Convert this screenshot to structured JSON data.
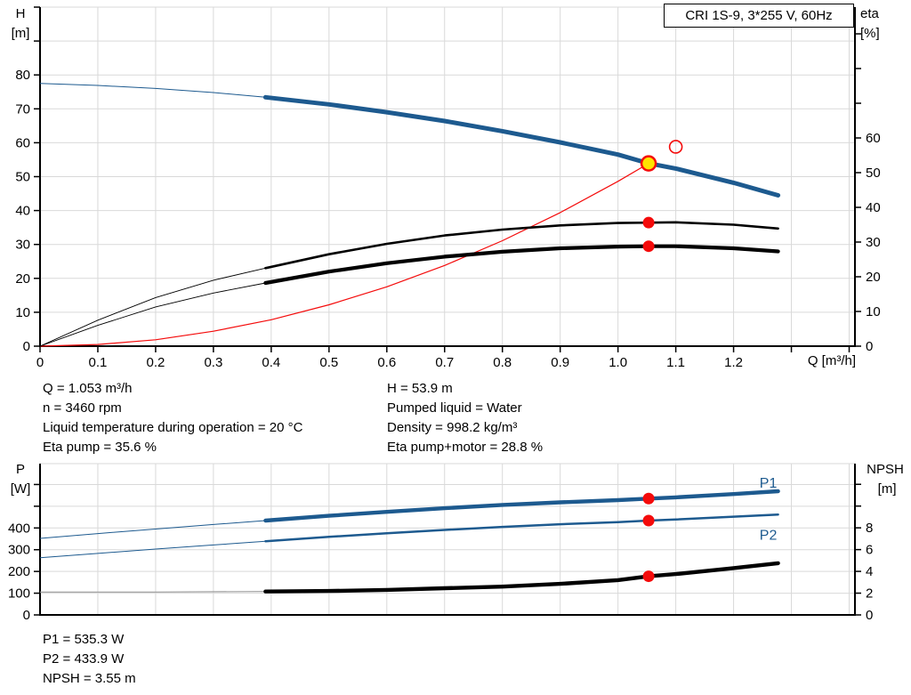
{
  "title_box": "CRI 1S-9, 3*255 V, 60Hz",
  "axis_labels": {
    "h": "H\n[m]",
    "eta": "eta\n[%]",
    "q": "Q [m³/h]",
    "p": "P\n[W]",
    "npsh": "NPSH\n [m]"
  },
  "colors": {
    "curve_blue": "#1d5a8f",
    "red": "#f40b0b",
    "yellow": "#ffe400",
    "grid": "#d9d9d9",
    "npsh_thin_gray": "#9a9a9a",
    "black": "#000000"
  },
  "info_top": {
    "left": [
      "Q = 1.053 m³/h",
      "n = 3460 rpm",
      "Liquid temperature during operation = 20 °C",
      "Eta pump = 35.6 %"
    ],
    "right": [
      "H = 53.9 m",
      "Pumped liquid = Water",
      "Density = 998.2 kg/m³",
      "Eta pump+motor = 28.8 %"
    ]
  },
  "info_bottom": [
    "P1 = 535.3 W",
    "P2 = 433.9 W",
    "NPSH = 3.55 m"
  ],
  "chart_data": [
    {
      "id": "hq",
      "type": "line",
      "title": "CRI 1S-9, 3*255 V, 60Hz",
      "xlabel": "Q [m³/h]",
      "x_range": [
        0,
        1.41
      ],
      "x_tick_step": 0.1,
      "x_grid_max": 1.4,
      "x_tick_labels": [
        "0",
        "0.1",
        "0.2",
        "0.3",
        "0.4",
        "0.5",
        "0.6",
        "0.7",
        "0.8",
        "0.9",
        "1.0",
        "1.1",
        "1.2"
      ],
      "left_axis": {
        "label": "H [m]",
        "range": [
          0,
          100
        ],
        "tick_step": 10,
        "labeled_max": 80
      },
      "right_axis": {
        "label": "eta [%]",
        "range": [
          0,
          97.7
        ],
        "tick_step": 10,
        "labeled_max": 60
      },
      "series": [
        {
          "name": "system-curve",
          "axis": "left",
          "color": "red",
          "width": 1.2,
          "points": [
            [
              0,
              0
            ],
            [
              0.1,
              0.5
            ],
            [
              0.2,
              1.9
            ],
            [
              0.3,
              4.4
            ],
            [
              0.4,
              7.8
            ],
            [
              0.5,
              12.2
            ],
            [
              0.6,
              17.5
            ],
            [
              0.7,
              23.8
            ],
            [
              0.8,
              31.1
            ],
            [
              0.9,
              39.4
            ],
            [
              1.0,
              48.6
            ],
            [
              1.053,
              53.9
            ]
          ]
        },
        {
          "name": "head",
          "axis": "left",
          "color": "curve_blue",
          "width": 5,
          "thick_from": 0.39,
          "thin_width": 1,
          "points": [
            [
              0,
              77.5
            ],
            [
              0.1,
              76.9
            ],
            [
              0.2,
              76.0
            ],
            [
              0.3,
              74.8
            ],
            [
              0.39,
              73.4
            ],
            [
              0.5,
              71.3
            ],
            [
              0.6,
              69.0
            ],
            [
              0.7,
              66.4
            ],
            [
              0.8,
              63.4
            ],
            [
              0.9,
              60.1
            ],
            [
              1.0,
              56.5
            ],
            [
              1.053,
              53.9
            ],
            [
              1.1,
              52.4
            ],
            [
              1.2,
              48.2
            ],
            [
              1.277,
              44.5
            ]
          ]
        },
        {
          "name": "eta-pump",
          "axis": "right",
          "color": "black",
          "width": 2.6,
          "thick_from": 0.39,
          "thin_width": 0.9,
          "points": [
            [
              0,
              0
            ],
            [
              0.1,
              7.5
            ],
            [
              0.2,
              14
            ],
            [
              0.3,
              19
            ],
            [
              0.39,
              22.5
            ],
            [
              0.5,
              26.5
            ],
            [
              0.6,
              29.5
            ],
            [
              0.7,
              31.9
            ],
            [
              0.8,
              33.6
            ],
            [
              0.9,
              34.8
            ],
            [
              1.0,
              35.5
            ],
            [
              1.053,
              35.6
            ],
            [
              1.1,
              35.7
            ],
            [
              1.2,
              35.0
            ],
            [
              1.277,
              33.9
            ]
          ]
        },
        {
          "name": "eta-pump-motor",
          "axis": "right",
          "color": "black",
          "width": 4.2,
          "thick_from": 0.39,
          "thin_width": 0.9,
          "points": [
            [
              0,
              0
            ],
            [
              0.1,
              6
            ],
            [
              0.2,
              11.3
            ],
            [
              0.3,
              15.3
            ],
            [
              0.39,
              18.2
            ],
            [
              0.5,
              21.5
            ],
            [
              0.6,
              23.9
            ],
            [
              0.7,
              25.8
            ],
            [
              0.8,
              27.2
            ],
            [
              0.9,
              28.2
            ],
            [
              1.0,
              28.7
            ],
            [
              1.053,
              28.8
            ],
            [
              1.1,
              28.8
            ],
            [
              1.2,
              28.2
            ],
            [
              1.277,
              27.3
            ]
          ]
        }
      ],
      "markers": [
        {
          "q": 1.053,
          "value": 53.9,
          "axis": "left",
          "style": "duty"
        },
        {
          "q": 1.1,
          "value": 58.8,
          "axis": "left",
          "style": "open"
        },
        {
          "q": 1.053,
          "value": 35.6,
          "axis": "right",
          "style": "dot"
        },
        {
          "q": 1.053,
          "value": 28.8,
          "axis": "right",
          "style": "dot"
        }
      ]
    },
    {
      "id": "pn",
      "type": "line",
      "xlabel": "",
      "x_range": [
        0,
        1.41
      ],
      "x_tick_step": 0.1,
      "x_grid_max": 1.4,
      "left_axis": {
        "label": "P [W]",
        "range": [
          0,
          696
        ],
        "tick_step": 100,
        "labeled_max": 400
      },
      "right_axis": {
        "label": "NPSH [m]",
        "range": [
          0,
          13.9
        ],
        "tick_step": 2,
        "labeled_max": 8
      },
      "series": [
        {
          "name": "P1",
          "axis": "left",
          "color": "curve_blue",
          "width": 4.4,
          "thick_from": 0.39,
          "thin_width": 1,
          "label": "P1",
          "label_q": 1.245,
          "label_v": 585,
          "points": [
            [
              0,
              352
            ],
            [
              0.1,
              374
            ],
            [
              0.2,
              395
            ],
            [
              0.3,
              416
            ],
            [
              0.39,
              434
            ],
            [
              0.5,
              456
            ],
            [
              0.6,
              474
            ],
            [
              0.7,
              491
            ],
            [
              0.8,
              506
            ],
            [
              0.9,
              518
            ],
            [
              1.0,
              528
            ],
            [
              1.053,
              535.3
            ],
            [
              1.1,
              541
            ],
            [
              1.2,
              556
            ],
            [
              1.277,
              569
            ]
          ]
        },
        {
          "name": "P2",
          "axis": "left",
          "color": "curve_blue",
          "width": 2.5,
          "thick_from": 0.39,
          "thin_width": 1,
          "label": "P2",
          "label_q": 1.245,
          "label_v": 346,
          "points": [
            [
              0,
              263
            ],
            [
              0.1,
              283
            ],
            [
              0.2,
              303
            ],
            [
              0.3,
              322
            ],
            [
              0.39,
              339
            ],
            [
              0.5,
              359
            ],
            [
              0.6,
              376
            ],
            [
              0.7,
              391
            ],
            [
              0.8,
              405
            ],
            [
              0.9,
              417
            ],
            [
              1.0,
              427
            ],
            [
              1.053,
              433.9
            ],
            [
              1.1,
              439
            ],
            [
              1.2,
              452
            ],
            [
              1.277,
              462
            ]
          ]
        },
        {
          "name": "NPSH",
          "axis": "right",
          "color": "black",
          "width": 4.4,
          "thick_from": 0.39,
          "thin_width": 1.2,
          "thin_color": "npsh_thin_gray",
          "points": [
            [
              0,
              2.1
            ],
            [
              0.2,
              2.1
            ],
            [
              0.39,
              2.15
            ],
            [
              0.5,
              2.2
            ],
            [
              0.6,
              2.3
            ],
            [
              0.7,
              2.45
            ],
            [
              0.8,
              2.6
            ],
            [
              0.9,
              2.85
            ],
            [
              1.0,
              3.2
            ],
            [
              1.053,
              3.55
            ],
            [
              1.1,
              3.75
            ],
            [
              1.2,
              4.3
            ],
            [
              1.277,
              4.75
            ]
          ]
        }
      ],
      "markers": [
        {
          "q": 1.053,
          "value": 535.3,
          "axis": "left",
          "style": "dot"
        },
        {
          "q": 1.053,
          "value": 433.9,
          "axis": "left",
          "style": "dot"
        },
        {
          "q": 1.053,
          "value": 3.55,
          "axis": "right",
          "style": "dot"
        }
      ]
    }
  ]
}
